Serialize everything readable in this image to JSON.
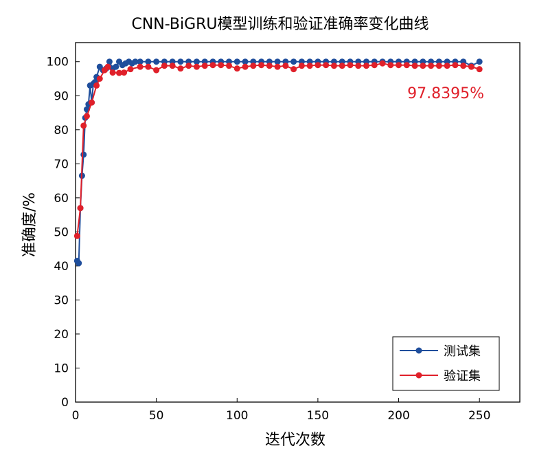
{
  "chart_data": {
    "type": "line",
    "title": "CNN-BiGRU模型训练和验证准确率变化曲线",
    "x_label": "迭代次数",
    "y_label": "准确度/%",
    "annotation": "97.8395%",
    "xlim": [
      0,
      275
    ],
    "xticks": [
      0,
      50,
      100,
      150,
      200,
      250
    ],
    "ylim": [
      0,
      105.6
    ],
    "yticks": [
      0,
      10,
      20,
      30,
      40,
      50,
      60,
      70,
      80,
      90,
      100
    ],
    "legend": "lower right",
    "series": [
      {
        "name": "测试集",
        "color": "#1f4e9c",
        "x": [
          1,
          2,
          3,
          4,
          5,
          6,
          7,
          8,
          9,
          10,
          11,
          12,
          13,
          15,
          17,
          19,
          21,
          23,
          25,
          27,
          29,
          31,
          33,
          35,
          37,
          40,
          45,
          50,
          55,
          60,
          65,
          70,
          75,
          80,
          85,
          90,
          95,
          100,
          105,
          110,
          115,
          120,
          125,
          130,
          135,
          140,
          145,
          150,
          155,
          160,
          165,
          170,
          175,
          180,
          185,
          190,
          195,
          200,
          205,
          210,
          215,
          220,
          225,
          230,
          235,
          240,
          245,
          250
        ],
        "values": [
          41.5,
          40.8,
          57,
          66.5,
          72.7,
          83.5,
          86,
          87.5,
          93,
          88,
          93.5,
          94,
          95.5,
          98.5,
          97.5,
          98,
          100,
          98,
          98.5,
          100,
          99,
          99.5,
          100,
          99.5,
          100,
          100,
          100,
          100,
          100,
          100,
          100,
          100,
          100,
          100,
          100,
          100,
          100,
          100,
          100,
          100,
          100,
          100,
          100,
          100,
          100,
          100,
          100,
          100,
          100,
          100,
          100,
          100,
          100,
          100,
          100,
          100,
          100,
          100,
          100,
          100,
          100,
          100,
          100,
          100,
          100,
          100,
          98.8,
          100
        ]
      },
      {
        "name": "验证集",
        "color": "#e0202a",
        "x": [
          1,
          3,
          5,
          7,
          10,
          13,
          15,
          18,
          20,
          23,
          27,
          30,
          34,
          40,
          45,
          50,
          55,
          60,
          65,
          70,
          75,
          80,
          85,
          90,
          95,
          100,
          105,
          110,
          115,
          120,
          125,
          130,
          135,
          140,
          145,
          150,
          155,
          160,
          165,
          170,
          175,
          180,
          185,
          190,
          195,
          200,
          205,
          210,
          215,
          220,
          225,
          230,
          235,
          240,
          245,
          250
        ],
        "values": [
          48.8,
          57,
          81.2,
          84,
          88,
          93,
          95,
          97.5,
          98.5,
          96.8,
          96.7,
          96.8,
          97.8,
          98.5,
          98.5,
          97.5,
          98.8,
          98.8,
          98,
          98.8,
          98.5,
          98.8,
          99,
          99,
          98.8,
          98,
          98.5,
          98.8,
          99,
          98.8,
          98.5,
          98.8,
          97.8,
          98.8,
          98.8,
          99,
          99,
          98.8,
          98.8,
          99,
          98.8,
          98.8,
          99,
          99.5,
          99,
          99,
          99,
          98.8,
          98.8,
          98.8,
          98.8,
          98.8,
          99,
          98.8,
          98.5,
          97.8
        ]
      }
    ]
  }
}
